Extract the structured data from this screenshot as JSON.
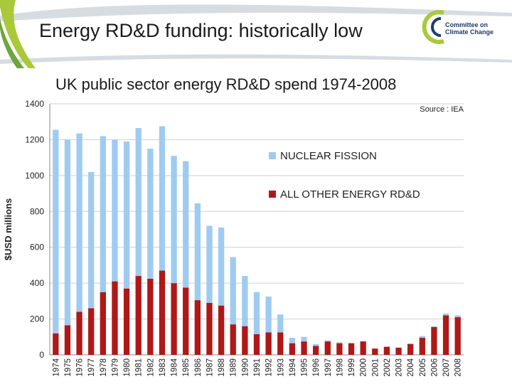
{
  "slide": {
    "title": "Energy RD&D funding: historically low",
    "logo_line1": "Committee on",
    "logo_line2": "Climate Change"
  },
  "colors": {
    "nuclear": "#9fcbf1",
    "other": "#b01818",
    "banner_green": "#a9c93a",
    "banner_grey": "#d7dce1",
    "logo_blue": "#1f3a6b"
  },
  "chart_data": {
    "type": "bar",
    "stacked": true,
    "title": "UK public sector energy RD&D spend  1974-2008",
    "ylabel": "$USD millions",
    "xlabel": "",
    "ylim": [
      0,
      1400
    ],
    "yticks": [
      0,
      200,
      400,
      600,
      800,
      1000,
      1200,
      1400
    ],
    "grid": true,
    "legend_position": "right",
    "annotation": "Source : IEA",
    "categories": [
      "1974",
      "1975",
      "1976",
      "1977",
      "1978",
      "1979",
      "1980",
      "1981",
      "1982",
      "1983",
      "1984",
      "1985",
      "1986",
      "1987",
      "1988",
      "1989",
      "1990",
      "1991",
      "1992",
      "1993",
      "1994",
      "1995",
      "1996",
      "1997",
      "1998",
      "1999",
      "2000",
      "2001",
      "2002",
      "2003",
      "2004",
      "2005",
      "2006",
      "2007",
      "2008"
    ],
    "series": [
      {
        "name": "ALL OTHER ENERGY RD&D",
        "values": [
          120,
          165,
          240,
          260,
          350,
          410,
          370,
          440,
          425,
          470,
          400,
          375,
          305,
          290,
          275,
          170,
          160,
          115,
          125,
          125,
          65,
          75,
          50,
          75,
          65,
          65,
          75,
          35,
          45,
          40,
          60,
          95,
          155,
          220,
          210
        ]
      },
      {
        "name": "NUCLEAR FISSION",
        "values": [
          1135,
          1035,
          995,
          760,
          870,
          790,
          820,
          825,
          725,
          805,
          710,
          705,
          540,
          430,
          435,
          375,
          280,
          235,
          200,
          100,
          30,
          25,
          10,
          5,
          5,
          0,
          0,
          0,
          0,
          0,
          5,
          10,
          5,
          10,
          10
        ]
      }
    ],
    "legend_order": [
      "NUCLEAR FISSION",
      "ALL OTHER ENERGY RD&D"
    ]
  }
}
